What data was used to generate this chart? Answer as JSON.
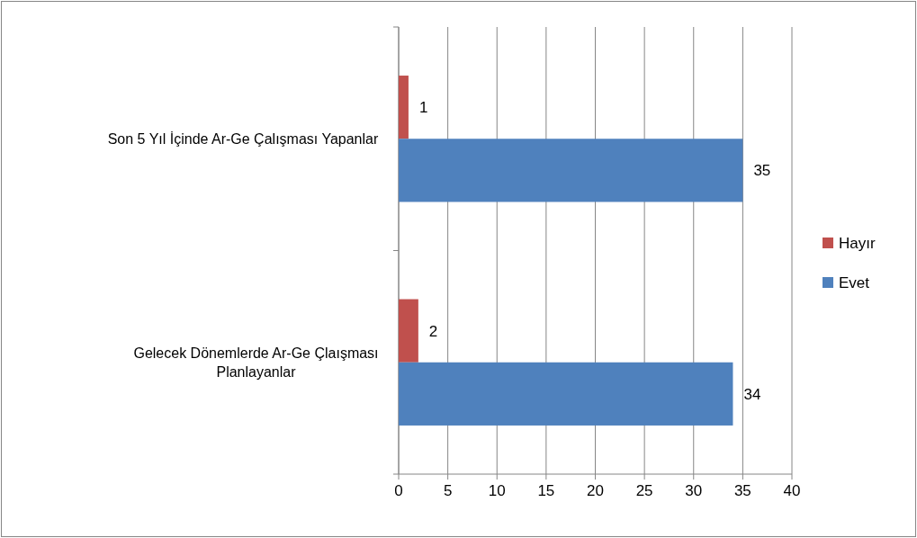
{
  "chart_data": {
    "type": "bar",
    "orientation": "horizontal",
    "categories": [
      "Son 5 Yıl İçinde Ar-Ge Çalışması Yapanlar",
      "Gelecek Dönemlerde Ar-Ge Çlaışması Planlayanlar"
    ],
    "series": [
      {
        "name": "Hayır",
        "color": "#c0504d",
        "values": [
          1,
          2
        ]
      },
      {
        "name": "Evet",
        "color": "#4f81bd",
        "values": [
          35,
          34
        ]
      }
    ],
    "xlim": [
      0,
      40
    ],
    "xticks": [
      0,
      5,
      10,
      15,
      20,
      25,
      30,
      35,
      40
    ],
    "grid": "x",
    "legend": "right",
    "data_labels": true
  }
}
